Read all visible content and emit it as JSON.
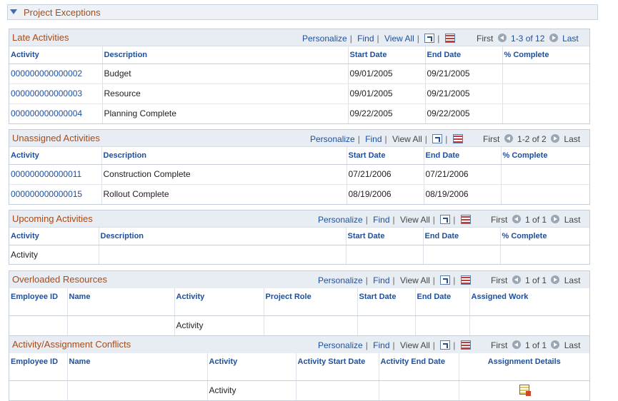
{
  "section": {
    "title": "Project Exceptions"
  },
  "nav_labels": {
    "personalize": "Personalize",
    "find": "Find",
    "view_all": "View All",
    "first": "First",
    "last": "Last"
  },
  "late": {
    "title": "Late Activities",
    "range": "1-3 of 12",
    "columns": [
      "Activity",
      "Description",
      "Start Date",
      "End Date",
      "% Complete"
    ],
    "rows": [
      [
        "000000000000002",
        "Budget",
        "09/01/2005",
        "09/21/2005",
        ""
      ],
      [
        "000000000000003",
        "Resource",
        "09/01/2005",
        "09/21/2005",
        ""
      ],
      [
        "000000000000004",
        "Planning Complete",
        "09/22/2005",
        "09/22/2005",
        ""
      ]
    ]
  },
  "unassigned": {
    "title": "Unassigned Activities",
    "range": "1-2 of 2",
    "columns": [
      "Activity",
      "Description",
      "Start Date",
      "End Date",
      "% Complete"
    ],
    "rows": [
      [
        "000000000000011",
        "Construction Complete",
        "07/21/2006",
        "07/21/2006",
        ""
      ],
      [
        "000000000000015",
        "Rollout Complete",
        "08/19/2006",
        "08/19/2006",
        ""
      ]
    ]
  },
  "upcoming": {
    "title": "Upcoming Activities",
    "range": "1 of 1",
    "columns": [
      "Activity",
      "Description",
      "Start Date",
      "End Date",
      "% Complete"
    ],
    "rows": [
      [
        "Activity",
        "",
        "",
        "",
        ""
      ]
    ]
  },
  "overloaded": {
    "title": "Overloaded Resources",
    "range": "1 of 1",
    "columns": [
      "Employee ID",
      "Name",
      "Activity",
      "Project Role",
      "Start Date",
      "End Date",
      "Assigned Work"
    ],
    "rows": [
      [
        "",
        "",
        "Activity",
        "",
        "",
        "",
        ""
      ]
    ]
  },
  "conflicts": {
    "title": "Activity/Assignment Conflicts",
    "range": "1 of 1",
    "columns": [
      "Employee ID",
      "Name",
      "Activity",
      "Activity Start Date",
      "Activity End Date",
      "Assignment Details"
    ],
    "rows": [
      [
        "",
        "",
        "Activity",
        "",
        "",
        ""
      ]
    ]
  },
  "icons": {
    "zoom": "new-window-icon",
    "download": "download-spreadsheet-icon",
    "details": "assignment-details-icon"
  }
}
